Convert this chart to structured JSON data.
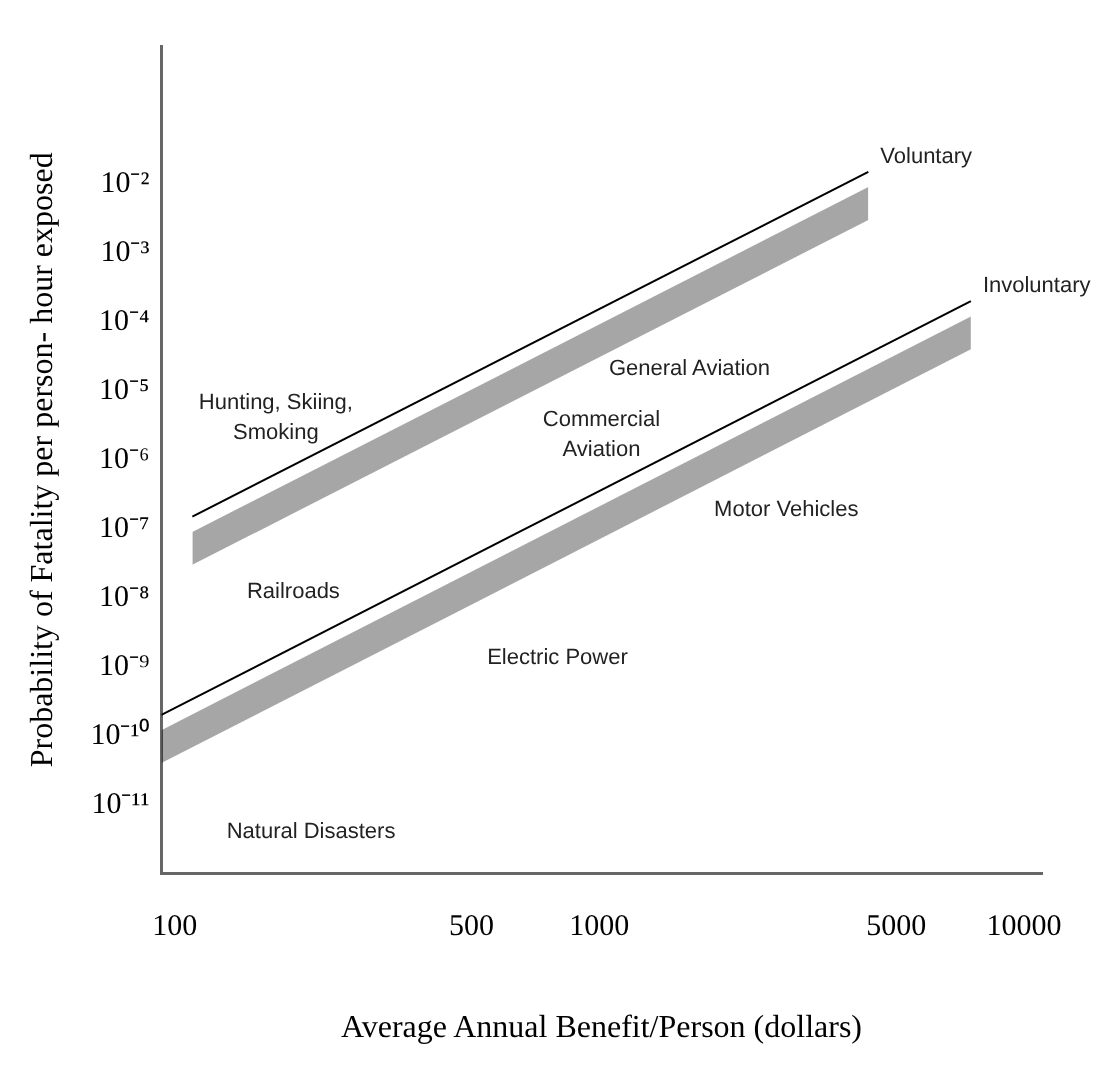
{
  "chart_data": {
    "type": "line",
    "xlabel": "Average Annual Benefit/Person (dollars)",
    "ylabel": "Probability of Fatality per person- hour exposed",
    "log": "xy",
    "grid": false,
    "marker": "none",
    "line_style": "solid",
    "xlim": [
      93,
      11000
    ],
    "xticks": [
      100,
      500,
      1000,
      5000,
      10000
    ],
    "ylim": [
      1e-12,
      1
    ],
    "yticks": [
      {
        "value": 0.01,
        "label": "10⁻²"
      },
      {
        "value": 0.001,
        "label": "10⁻³"
      },
      {
        "value": 0.0001,
        "label": "10⁻⁴"
      },
      {
        "value": 1e-05,
        "label": "10⁻⁵"
      },
      {
        "value": 1e-06,
        "label": "10⁻⁶"
      },
      {
        "value": 1e-07,
        "label": "10⁻⁷"
      },
      {
        "value": 1e-08,
        "label": "10⁻⁸"
      },
      {
        "value": 1e-09,
        "label": "10⁻⁹"
      },
      {
        "value": 1e-10,
        "label": "10⁻¹⁰"
      },
      {
        "value": 1e-11,
        "label": "10⁻¹¹"
      }
    ],
    "series": [
      {
        "name": "Voluntary",
        "color": "#000000",
        "x": [
          110,
          4300
        ],
        "values": [
          1.5e-07,
          0.015
        ],
        "upper": [
          9e-08,
          0.009
        ],
        "lower": [
          3e-08,
          0.003
        ]
      },
      {
        "name": "Involuntary",
        "color": "#000000",
        "x": [
          93,
          7500
        ],
        "values": [
          2e-10,
          0.0002
        ],
        "upper": [
          1.2e-10,
          0.00012
        ],
        "lower": [
          4e-11,
          4e-05
        ]
      }
    ],
    "annotations": [
      "Hunting, Skiing, Smoking",
      "Railroads",
      "General Aviation",
      "Commercial Aviation",
      "Motor Vehicles",
      "Electric Power",
      "Natural Disasters"
    ]
  }
}
